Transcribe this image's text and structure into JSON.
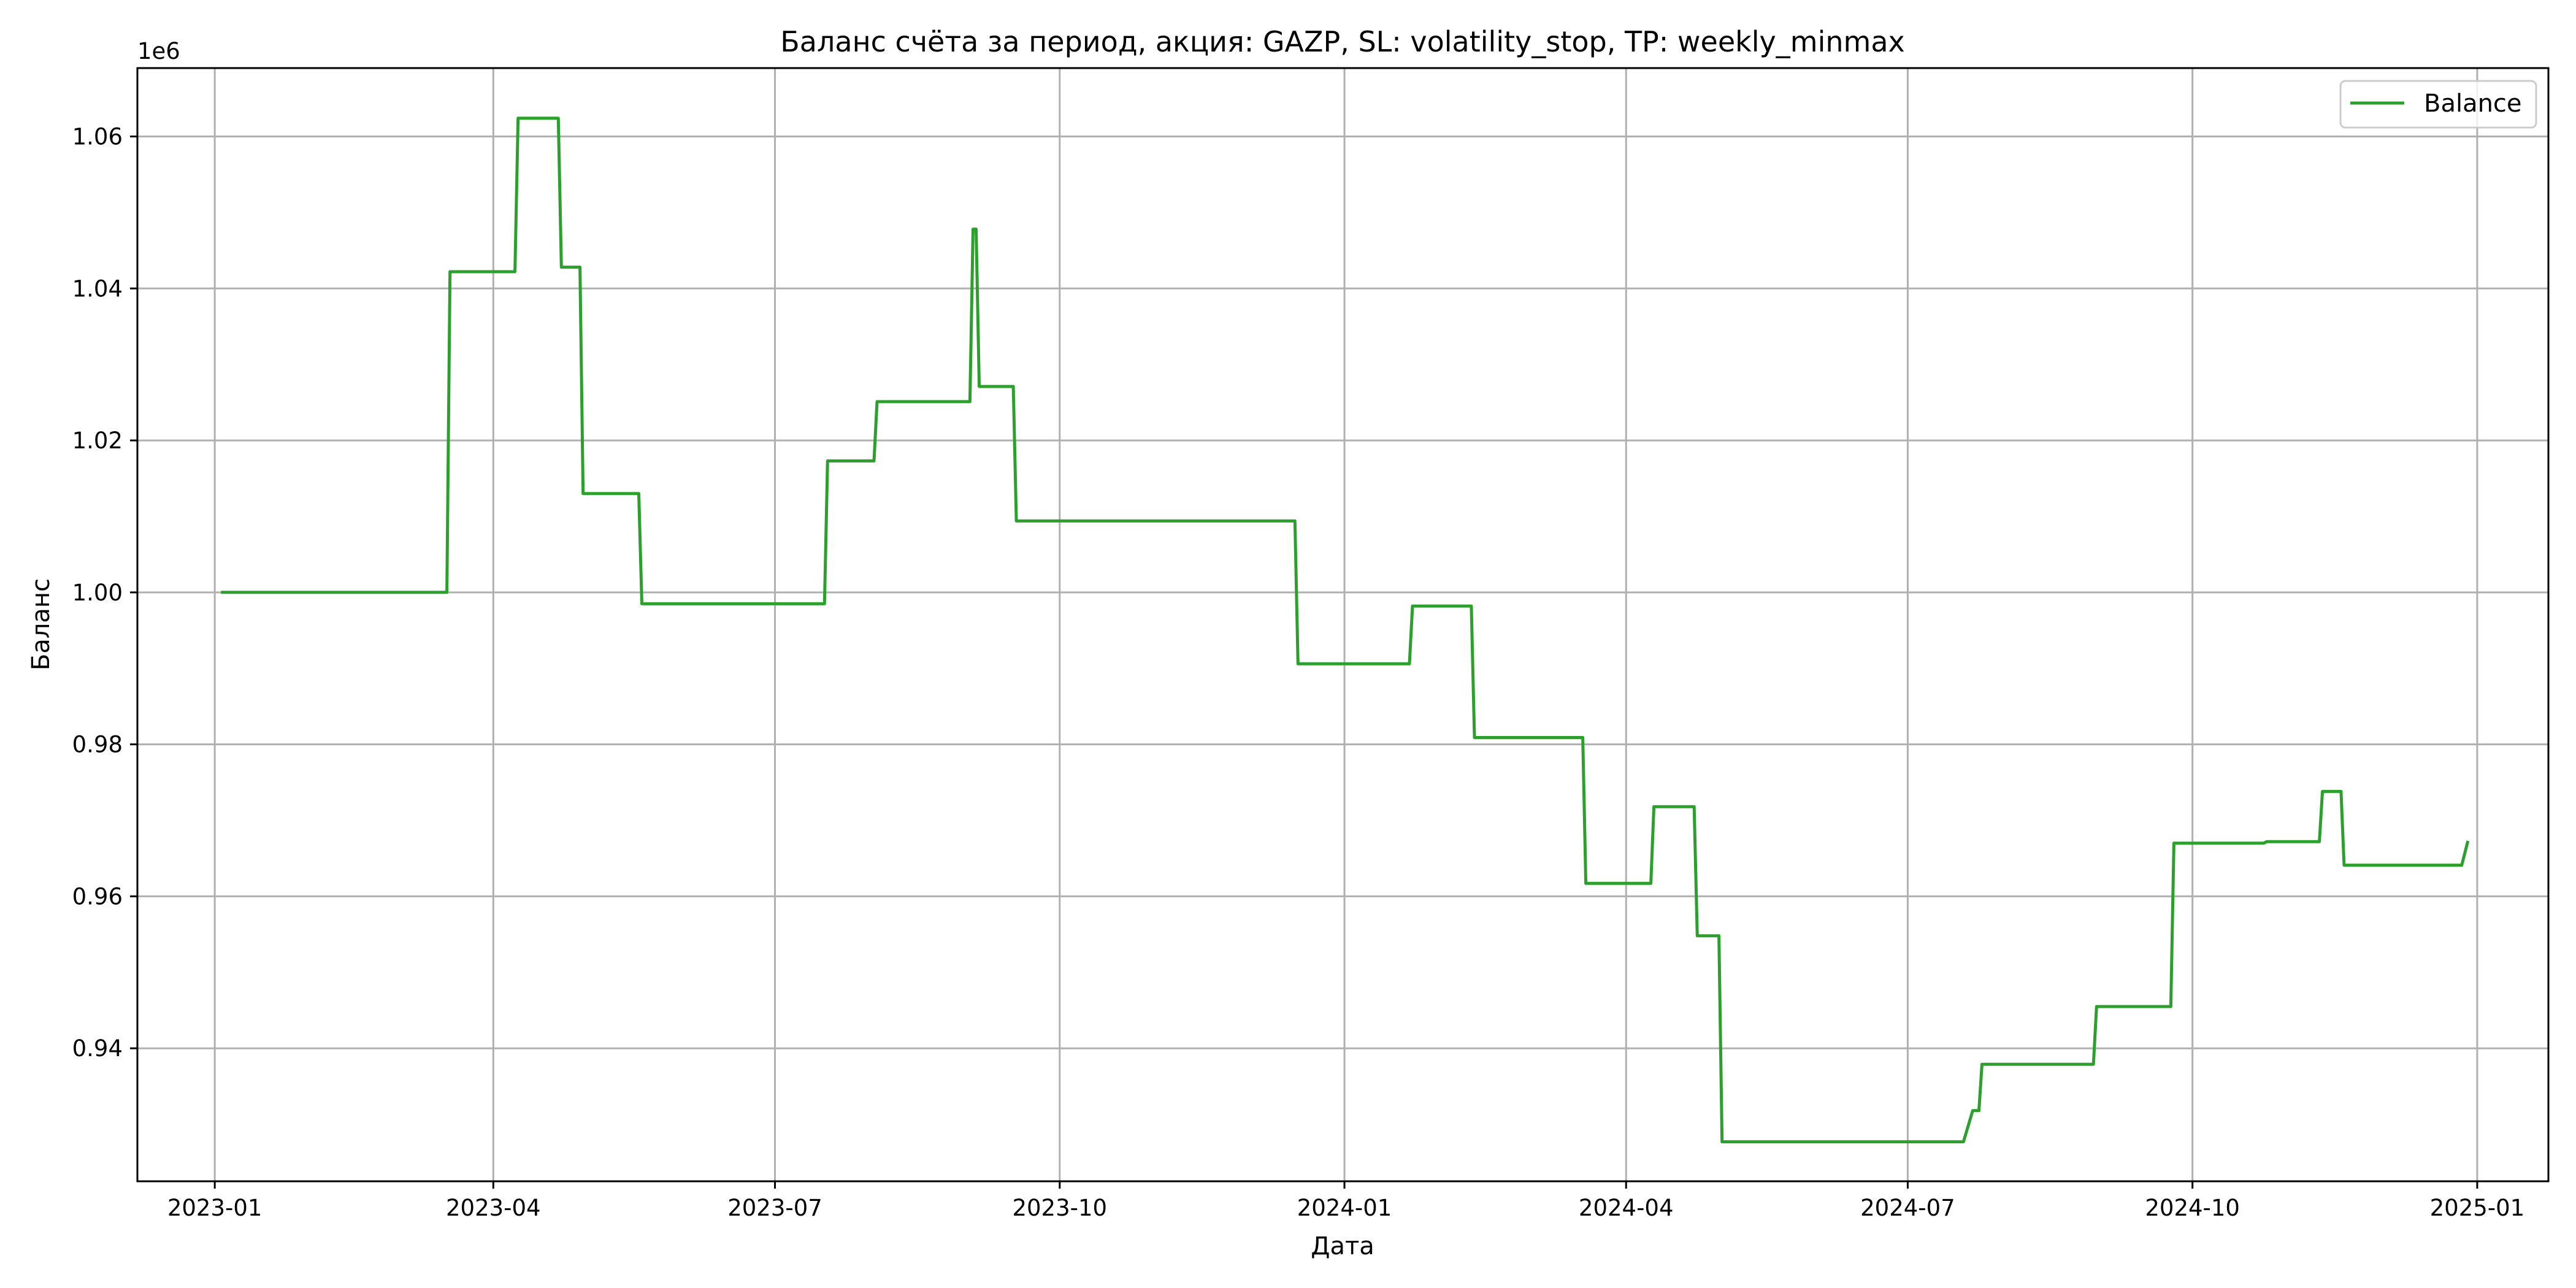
{
  "chart_data": {
    "type": "line",
    "title": "Баланс счёта за период, акция: GAZP, SL: volatility_stop, TP: weekly_minmax",
    "xlabel": "Дата",
    "ylabel": "Баланс",
    "y_offset_text": "1e6",
    "xlim": [
      "2022-12-07",
      "2025-01-24"
    ],
    "ylim": [
      0.9225,
      1.069
    ],
    "y_scale_factor": 1000000,
    "x_ticks": [
      "2023-01-01",
      "2023-04-01",
      "2023-07-01",
      "2023-10-01",
      "2024-01-01",
      "2024-04-01",
      "2024-07-01",
      "2024-10-01",
      "2025-01-01"
    ],
    "x_tick_labels": [
      "2023-01",
      "2023-04",
      "2023-07",
      "2023-10",
      "2024-01",
      "2024-04",
      "2024-07",
      "2024-10",
      "2025-01"
    ],
    "y_ticks": [
      0.94,
      0.96,
      0.98,
      1.0,
      1.02,
      1.04,
      1.06
    ],
    "y_tick_labels": [
      "0.94",
      "0.96",
      "0.98",
      "1.00",
      "1.02",
      "1.04",
      "1.06"
    ],
    "grid": true,
    "legend_position": "top-right",
    "series": [
      {
        "name": "Balance",
        "color": "#2ca02c",
        "points": [
          [
            "2023-01-03",
            1.0
          ],
          [
            "2023-03-17",
            1.0
          ],
          [
            "2023-03-18",
            1.0422
          ],
          [
            "2023-04-08",
            1.0422
          ],
          [
            "2023-04-09",
            1.0624
          ],
          [
            "2023-04-22",
            1.0624
          ],
          [
            "2023-04-23",
            1.0428
          ],
          [
            "2023-04-29",
            1.0428
          ],
          [
            "2023-04-30",
            1.013
          ],
          [
            "2023-05-18",
            1.013
          ],
          [
            "2023-05-19",
            0.9985
          ],
          [
            "2023-07-17",
            0.9985
          ],
          [
            "2023-07-18",
            1.0173
          ],
          [
            "2023-08-02",
            1.0173
          ],
          [
            "2023-08-03",
            1.0251
          ],
          [
            "2023-09-02",
            1.0251
          ],
          [
            "2023-09-03",
            1.0478
          ],
          [
            "2023-09-04",
            1.0478
          ],
          [
            "2023-09-05",
            1.0271
          ],
          [
            "2023-09-16",
            1.0271
          ],
          [
            "2023-09-17",
            1.0094
          ],
          [
            "2023-12-16",
            1.0094
          ],
          [
            "2023-12-17",
            0.9906
          ],
          [
            "2024-01-22",
            0.9906
          ],
          [
            "2024-01-23",
            0.9982
          ],
          [
            "2024-02-11",
            0.9982
          ],
          [
            "2024-02-12",
            0.9809
          ],
          [
            "2024-03-18",
            0.9809
          ],
          [
            "2024-03-19",
            0.9617
          ],
          [
            "2024-04-09",
            0.9617
          ],
          [
            "2024-04-10",
            0.9718
          ],
          [
            "2024-04-23",
            0.9718
          ],
          [
            "2024-04-24",
            0.9548
          ],
          [
            "2024-05-01",
            0.9548
          ],
          [
            "2024-05-02",
            0.9277
          ],
          [
            "2024-07-19",
            0.9277
          ],
          [
            "2024-07-22",
            0.9318
          ],
          [
            "2024-07-24",
            0.9318
          ],
          [
            "2024-07-25",
            0.9379
          ],
          [
            "2024-08-30",
            0.9379
          ],
          [
            "2024-08-31",
            0.9455
          ],
          [
            "2024-09-24",
            0.9455
          ],
          [
            "2024-09-25",
            0.967
          ],
          [
            "2024-10-24",
            0.967
          ],
          [
            "2024-10-25",
            0.9672
          ],
          [
            "2024-11-11",
            0.9672
          ],
          [
            "2024-11-12",
            0.9738
          ],
          [
            "2024-11-18",
            0.9738
          ],
          [
            "2024-11-19",
            0.9641
          ],
          [
            "2024-12-27",
            0.9641
          ],
          [
            "2024-12-29",
            0.9673
          ]
        ]
      }
    ]
  }
}
